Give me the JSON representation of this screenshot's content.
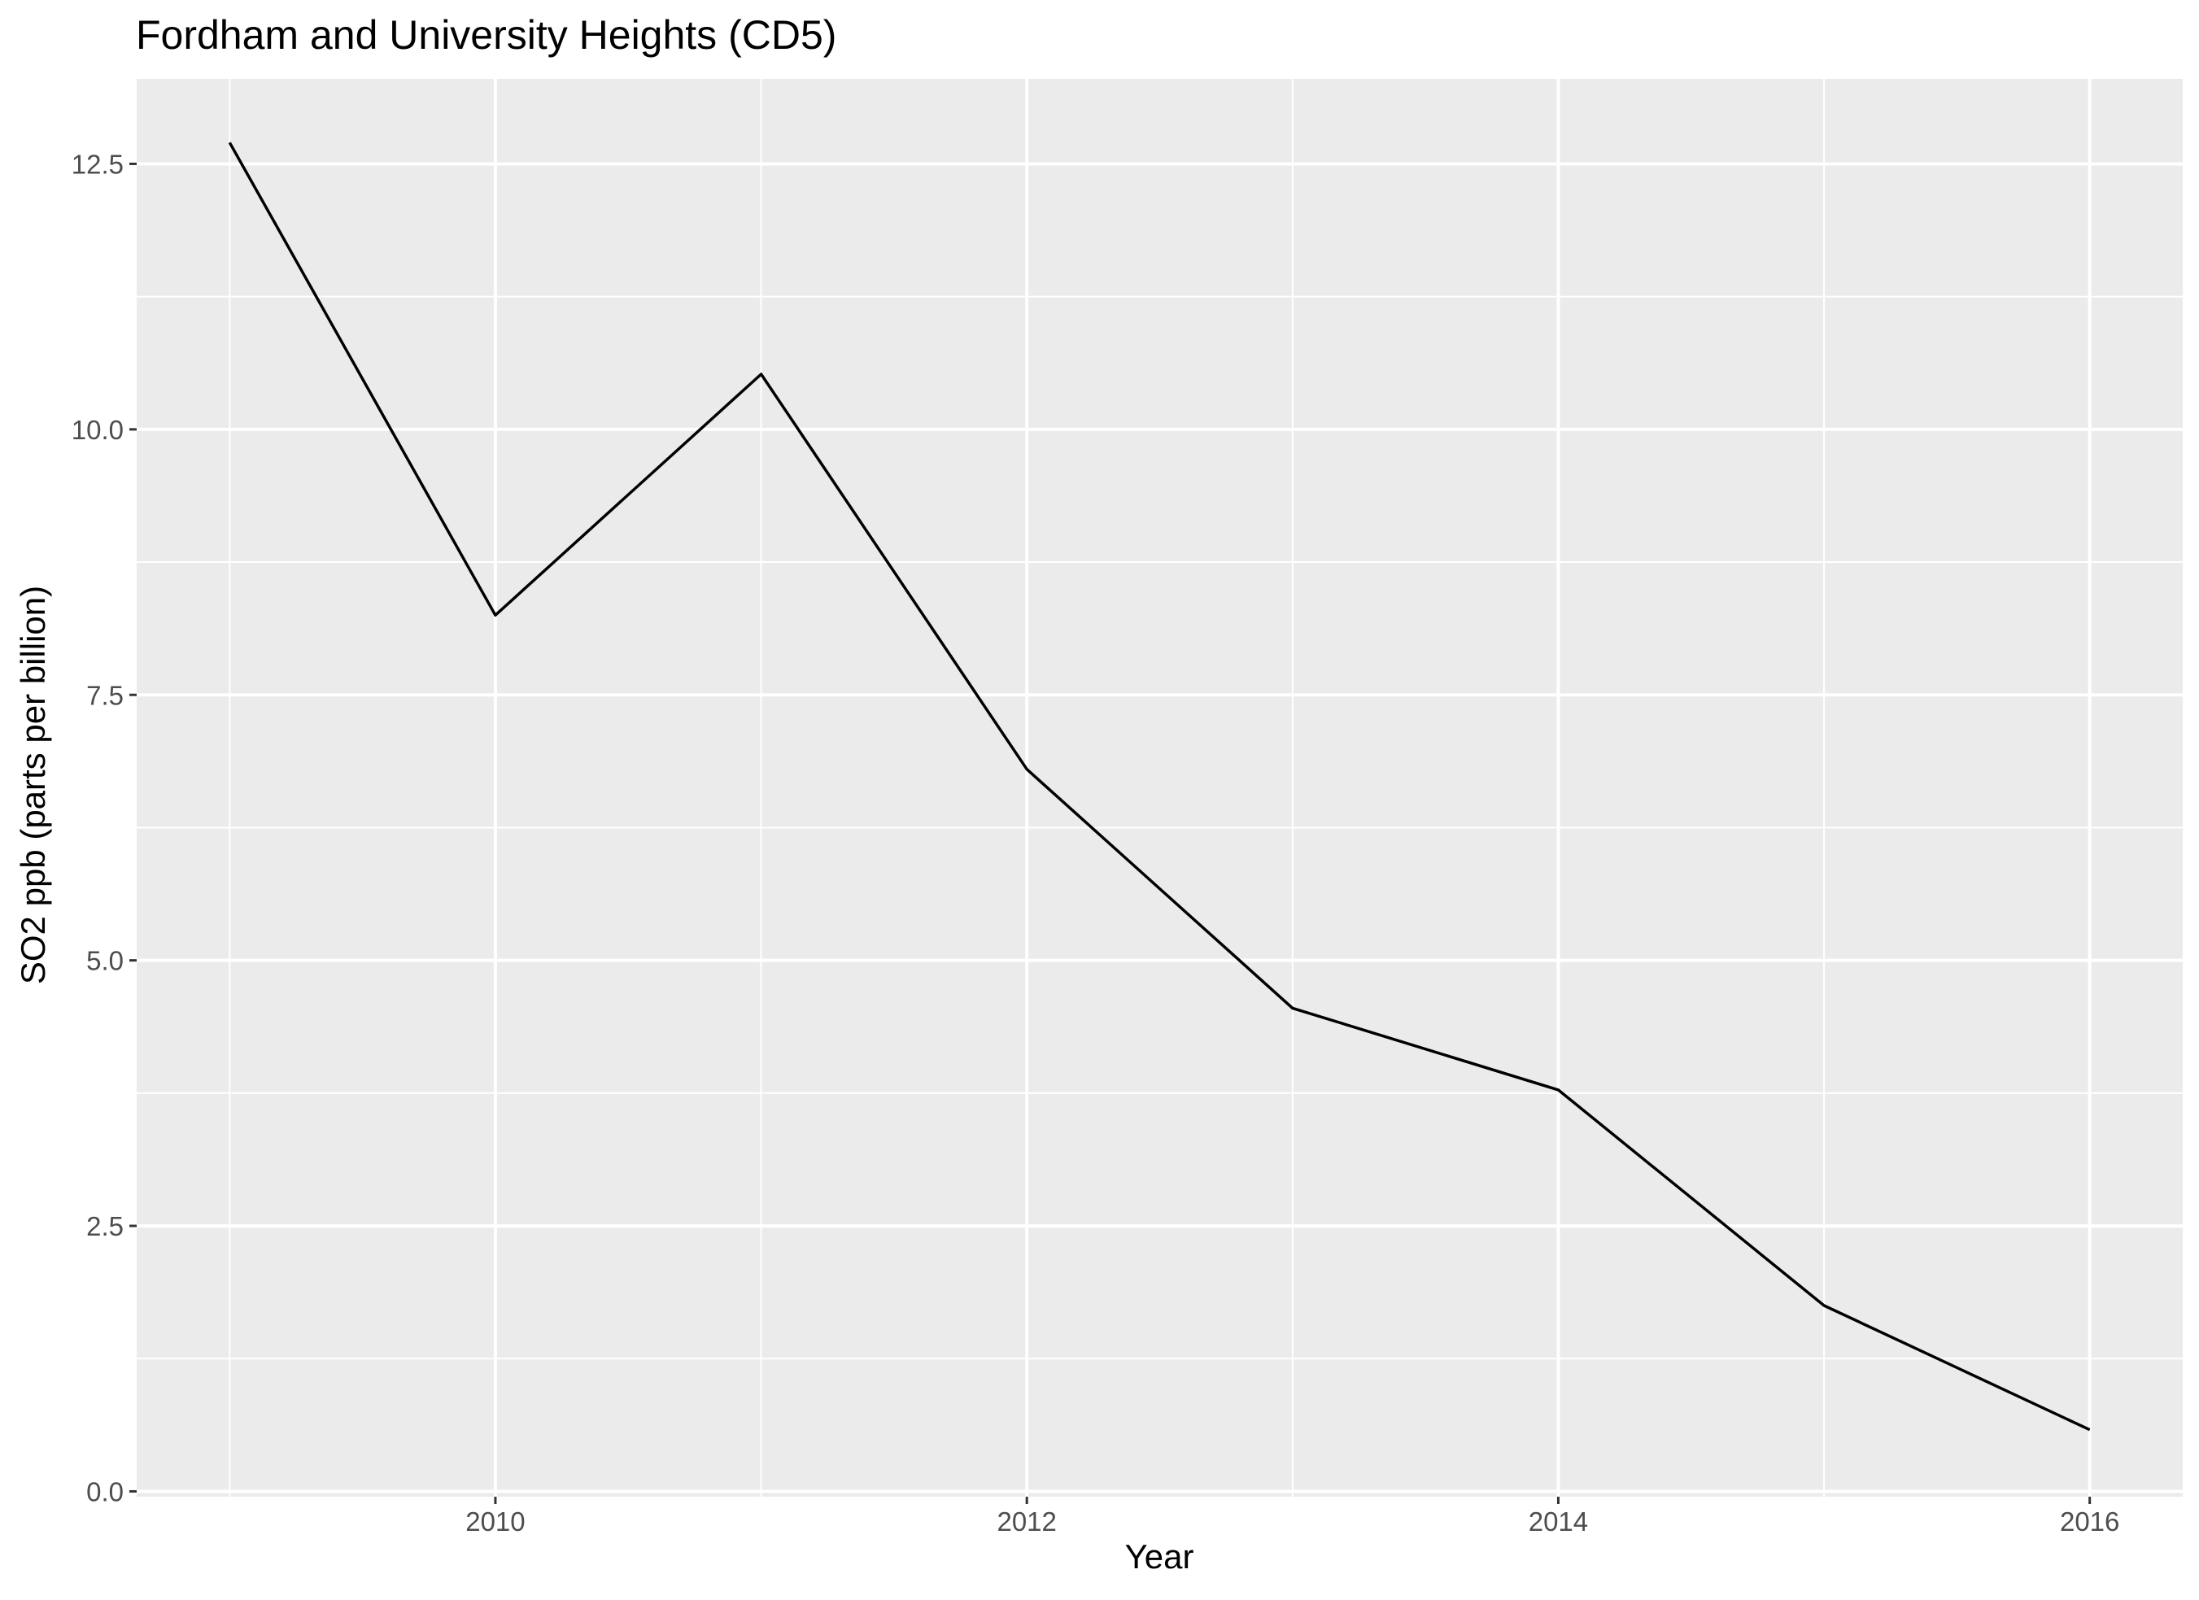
{
  "chart_data": {
    "type": "line",
    "title": "Fordham and University Heights (CD5)",
    "xlabel": "Year",
    "ylabel": "SO2 ppb (parts per billion)",
    "x": [
      2009,
      2010,
      2011,
      2012,
      2013,
      2014,
      2015,
      2016
    ],
    "series": [
      {
        "values": [
          12.7,
          8.25,
          10.52,
          6.8,
          4.55,
          3.78,
          1.75,
          0.58
        ]
      }
    ],
    "xlim": [
      2008.65,
      2016.35
    ],
    "ylim": [
      -0.05,
      13.3
    ],
    "x_ticks": [
      2010,
      2012,
      2014,
      2016
    ],
    "x_tick_labels": [
      "2010",
      "2012",
      "2014",
      "2016"
    ],
    "x_minor_ticks": [
      2009,
      2011,
      2013,
      2015
    ],
    "y_ticks": [
      0,
      2.5,
      5,
      7.5,
      10,
      12.5
    ],
    "y_tick_labels": [
      "0.0",
      "2.5",
      "5.0",
      "7.5",
      "10.0",
      "12.5"
    ],
    "y_minor_ticks": [
      1.25,
      3.75,
      6.25,
      8.75,
      11.25
    ],
    "grid": true,
    "legend": "none",
    "colors": {
      "panel_background": "#ebebeb",
      "gridline": "#ffffff",
      "line": "#000000",
      "tick_label": "#4d4d4d",
      "tick_mark": "#333333"
    }
  }
}
